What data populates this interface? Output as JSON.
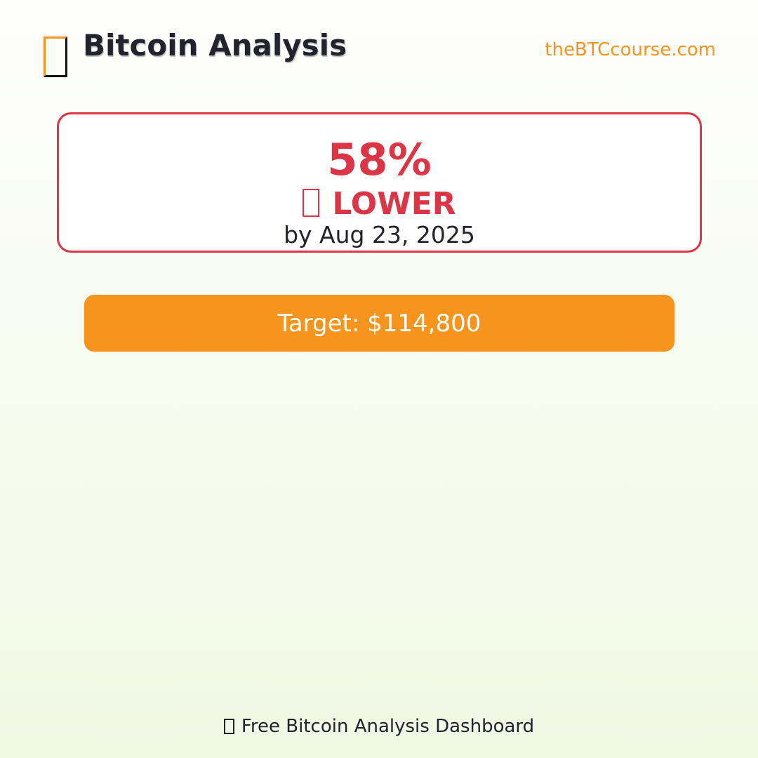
{
  "header": {
    "icon": "bitcoin-icon",
    "title": "Bitcoin Analysis",
    "site_link": "theBTCcourse.com"
  },
  "prediction": {
    "percent": "58%",
    "direction_icon": "down-trend-icon",
    "direction": "LOWER",
    "by_date": "by Aug 23, 2025"
  },
  "target": {
    "label": "Target: $114,800"
  },
  "footer": {
    "icon": "chart-icon",
    "text": "Free Bitcoin Analysis Dashboard"
  },
  "colors": {
    "accent": "#f7941e",
    "bearish": "#dc3545",
    "text": "#23232e"
  }
}
